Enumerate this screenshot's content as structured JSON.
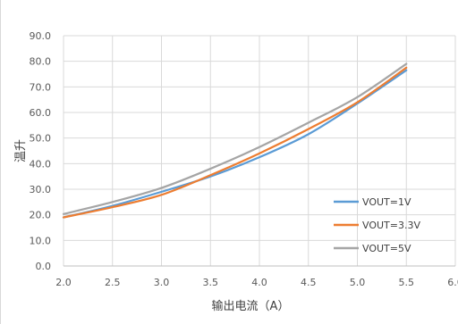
{
  "chart_data": {
    "type": "line",
    "title": "",
    "xlabel": "输出电流（A）",
    "ylabel": "温升",
    "xlim": [
      2.0,
      6.0
    ],
    "ylim": [
      0.0,
      90.0
    ],
    "x_ticks": [
      "2.0",
      "2.5",
      "3.0",
      "3.5",
      "4.0",
      "4.5",
      "5.0",
      "5.5",
      "6.0"
    ],
    "y_ticks": [
      "0.0",
      "10.0",
      "20.0",
      "30.0",
      "40.0",
      "50.0",
      "60.0",
      "70.0",
      "80.0",
      "90.0"
    ],
    "grid": true,
    "legend_position": "right",
    "series": [
      {
        "name": "VOUT=1V",
        "color": "#5b9bd5",
        "x": [
          2.0,
          2.5,
          3.0,
          3.5,
          4.0,
          4.5,
          5.0,
          5.5
        ],
        "y": [
          19.0,
          23.5,
          29.0,
          35.0,
          42.5,
          51.5,
          63.5,
          76.5
        ]
      },
      {
        "name": "VOUT=3.3V",
        "color": "#ed7d31",
        "x": [
          2.0,
          2.5,
          3.0,
          3.5,
          4.0,
          4.5,
          5.0,
          5.5
        ],
        "y": [
          19.0,
          23.0,
          27.8,
          35.5,
          44.0,
          53.5,
          64.0,
          77.5
        ]
      },
      {
        "name": "VOUT=5V",
        "color": "#a5a5a5",
        "x": [
          2.0,
          2.5,
          3.0,
          3.5,
          4.0,
          4.5,
          5.0,
          5.5
        ],
        "y": [
          20.3,
          25.0,
          30.5,
          38.0,
          46.5,
          56.0,
          66.0,
          79.0
        ]
      }
    ]
  }
}
